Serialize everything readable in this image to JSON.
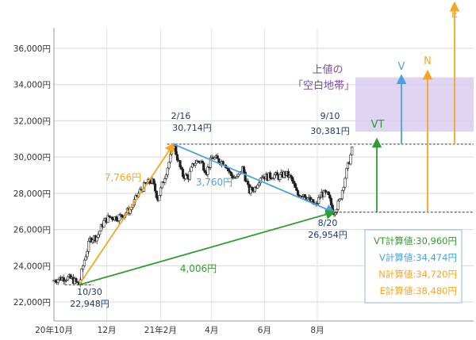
{
  "chart_data": {
    "type": "candlestick",
    "title": "",
    "xlabel": "",
    "ylabel": "",
    "ylim": [
      21500,
      37800
    ],
    "y_ticks": [
      "36,000円",
      "34,000円",
      "32,000円",
      "30,000円",
      "28,000円",
      "26,000円",
      "24,000円",
      "22,000円"
    ],
    "y_tick_values": [
      36000,
      34000,
      32000,
      30000,
      28000,
      26000,
      24000,
      22000
    ],
    "x_ticks": [
      "20年10月",
      "12月",
      "21年2月",
      "4月",
      "6月",
      "8月"
    ],
    "x_tick_dates": [
      "2020-10-01",
      "2020-12-01",
      "2021-02-01",
      "2021-04-01",
      "2021-06-01",
      "2021-08-01"
    ],
    "grid": true,
    "price_path": [
      [
        "2020-10-01",
        23200
      ],
      [
        "2020-10-08",
        23300
      ],
      [
        "2020-10-15",
        23350
      ],
      [
        "2020-10-22",
        23250
      ],
      [
        "2020-10-30",
        22948
      ],
      [
        "2020-11-05",
        24300
      ],
      [
        "2020-11-12",
        25500
      ],
      [
        "2020-11-20",
        25600
      ],
      [
        "2020-11-27",
        26400
      ],
      [
        "2020-12-04",
        26700
      ],
      [
        "2020-12-11",
        26650
      ],
      [
        "2020-12-18",
        26750
      ],
      [
        "2020-12-28",
        27100
      ],
      [
        "2021-01-08",
        28100
      ],
      [
        "2021-01-15",
        28500
      ],
      [
        "2021-01-22",
        28700
      ],
      [
        "2021-01-29",
        27700
      ],
      [
        "2021-02-05",
        28800
      ],
      [
        "2021-02-12",
        29900
      ],
      [
        "2021-02-16",
        30714
      ],
      [
        "2021-02-26",
        29000
      ],
      [
        "2021-03-05",
        28900
      ],
      [
        "2021-03-12",
        29700
      ],
      [
        "2021-03-19",
        29800
      ],
      [
        "2021-03-26",
        29200
      ],
      [
        "2021-04-02",
        30000
      ],
      [
        "2021-04-09",
        29800
      ],
      [
        "2021-04-16",
        29700
      ],
      [
        "2021-04-23",
        29000
      ],
      [
        "2021-04-30",
        28800
      ],
      [
        "2021-05-07",
        29400
      ],
      [
        "2021-05-14",
        28100
      ],
      [
        "2021-05-21",
        28300
      ],
      [
        "2021-05-28",
        29000
      ],
      [
        "2021-06-04",
        28900
      ],
      [
        "2021-06-11",
        29000
      ],
      [
        "2021-06-18",
        28900
      ],
      [
        "2021-06-25",
        29100
      ],
      [
        "2021-07-02",
        28800
      ],
      [
        "2021-07-09",
        27900
      ],
      [
        "2021-07-16",
        28000
      ],
      [
        "2021-07-23",
        27600
      ],
      [
        "2021-07-30",
        27300
      ],
      [
        "2021-08-06",
        28000
      ],
      [
        "2021-08-13",
        27900
      ],
      [
        "2021-08-20",
        26954
      ],
      [
        "2021-08-27",
        27600
      ],
      [
        "2021-09-03",
        29100
      ],
      [
        "2021-09-10",
        30381
      ]
    ],
    "points": [
      {
        "date": "2020-10-30",
        "value": 22948,
        "label_date": "10/30",
        "label_value": "22,948円"
      },
      {
        "date": "2021-02-16",
        "value": 30714,
        "label_date": "2/16",
        "label_value": "30,714円"
      },
      {
        "date": "2021-08-20",
        "value": 26954,
        "label_date": "8/20",
        "label_value": "26,954円"
      },
      {
        "date": "2021-09-10",
        "value": 30381,
        "label_date": "9/10",
        "label_value": "30,381円"
      }
    ],
    "moves": [
      {
        "label": "7,766円",
        "from": "2020-10-30",
        "from_value": 22948,
        "to": "2021-02-16",
        "to_value": 30714,
        "color": "#f5a623"
      },
      {
        "label": "3,760円",
        "from": "2021-02-16",
        "from_value": 30714,
        "to": "2021-08-20",
        "to_value": 26954,
        "color": "#4aa3df"
      },
      {
        "label": "4,006円",
        "from": "2020-10-30",
        "from_value": 22948,
        "to": "2021-08-20",
        "to_value": 26954,
        "color": "#2e9e2e"
      }
    ],
    "targets": [
      {
        "name": "VT",
        "value": 30960,
        "color": "#2e9e2e"
      },
      {
        "name": "V",
        "value": 34474,
        "color": "#4aa3df"
      },
      {
        "name": "N",
        "value": 34720,
        "color": "#f5a623"
      },
      {
        "name": "E",
        "value": 38480,
        "color": "#f5a623"
      }
    ],
    "vacuum_zone": {
      "label_line1": "上値の",
      "label_line2": "「空白地帯」",
      "from": 31400,
      "to": 34400,
      "color": "#d9cdee"
    },
    "calc_box": [
      {
        "text": "VT計算値:30,960円",
        "color": "#2e9e2e"
      },
      {
        "text": "V計算値:34,474円",
        "color": "#4aa3df"
      },
      {
        "text": "N計算値:34,720円",
        "color": "#f5a623"
      },
      {
        "text": "E計算値:38,480円",
        "color": "#f5a623"
      }
    ]
  }
}
